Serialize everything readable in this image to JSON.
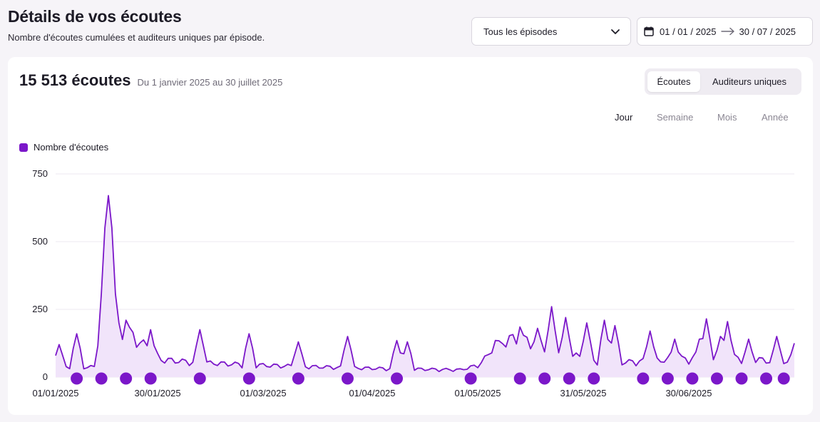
{
  "header": {
    "title": "Détails de vos écoutes",
    "subtitle": "Nombre d'écoutes cumulées et auditeurs uniques par épisode."
  },
  "filters": {
    "episode_select": "Tous les épisodes",
    "date_start": "01 / 01 / 2025",
    "date_end": "30 / 07 / 2025"
  },
  "summary": {
    "count": "15 513 écoutes",
    "range": "Du 1 janvier 2025 au 30 juillet 2025"
  },
  "toggle": {
    "active": "Écoutes",
    "other": "Auditeurs uniques"
  },
  "periods": [
    "Jour",
    "Semaine",
    "Mois",
    "Année"
  ],
  "legend": {
    "label": "Nombre d'écoutes"
  },
  "colors": {
    "accent": "#7b17c9",
    "fill": "#f1e4fa",
    "grid": "#ece9f0"
  },
  "chart_data": {
    "type": "area",
    "title": "",
    "xlabel": "",
    "ylabel": "",
    "ylim": [
      0,
      750
    ],
    "yticks": [
      "0",
      "250",
      "500",
      "750"
    ],
    "yticks_values": [
      0,
      250,
      500,
      750
    ],
    "xtick_labels": [
      "01/01/2025",
      "30/01/2025",
      "01/03/2025",
      "01/04/2025",
      "01/05/2025",
      "31/05/2025",
      "30/06/2025"
    ],
    "xtick_days": [
      0,
      29,
      59,
      90,
      120,
      150,
      180
    ],
    "series": [
      {
        "name": "Nombre d'écoutes",
        "days": 211,
        "baseline": [
          [
            0,
            30
          ],
          [
            12,
            35
          ],
          [
            20,
            160
          ],
          [
            30,
            60
          ],
          [
            40,
            50
          ],
          [
            60,
            40
          ],
          [
            90,
            30
          ],
          [
            115,
            25
          ],
          [
            120,
            40
          ],
          [
            128,
            130
          ],
          [
            140,
            120
          ],
          [
            150,
            60
          ],
          [
            160,
            50
          ],
          [
            175,
            60
          ],
          [
            190,
            70
          ],
          [
            200,
            60
          ],
          [
            210,
            40
          ]
        ],
        "peaks": [
          [
            1,
            120
          ],
          [
            6,
            160
          ],
          [
            13,
            150
          ],
          [
            15,
            670
          ],
          [
            18,
            200
          ],
          [
            20,
            210
          ],
          [
            27,
            175
          ],
          [
            41,
            175
          ],
          [
            55,
            160
          ],
          [
            69,
            130
          ],
          [
            83,
            150
          ],
          [
            97,
            135
          ],
          [
            100,
            130
          ],
          [
            111,
            30
          ],
          [
            118,
            25
          ],
          [
            125,
            135
          ],
          [
            132,
            185
          ],
          [
            137,
            180
          ],
          [
            141,
            260
          ],
          [
            145,
            220
          ],
          [
            151,
            200
          ],
          [
            156,
            210
          ],
          [
            159,
            190
          ],
          [
            169,
            170
          ],
          [
            176,
            140
          ],
          [
            183,
            140
          ],
          [
            185,
            215
          ],
          [
            189,
            150
          ],
          [
            191,
            205
          ],
          [
            197,
            140
          ],
          [
            205,
            150
          ],
          [
            210,
            125
          ]
        ]
      }
    ],
    "episode_markers": [
      6,
      13,
      20,
      27,
      41,
      55,
      69,
      83,
      97,
      118,
      132,
      139,
      146,
      153,
      167,
      174,
      181,
      188,
      195,
      202,
      207
    ]
  }
}
